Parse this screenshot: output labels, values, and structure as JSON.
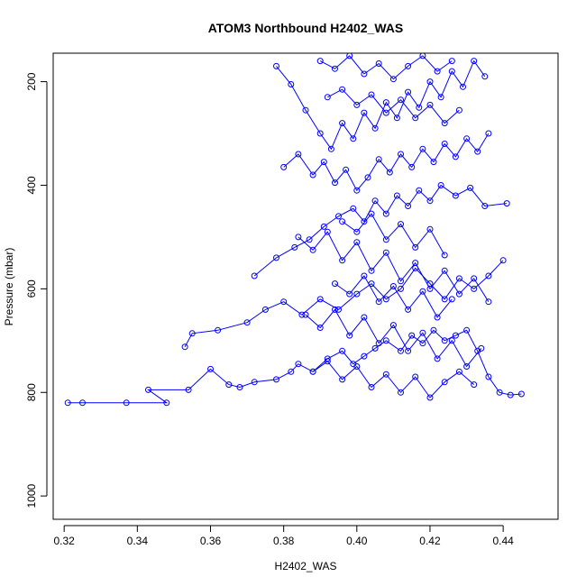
{
  "chart_data": {
    "type": "line",
    "title": "ATOM3 Northbound H2402_WAS",
    "xlabel": "H2402_WAS",
    "ylabel": "Pressure (mbar)",
    "xlim": [
      0.317,
      0.455
    ],
    "ylim": [
      1045,
      145
    ],
    "y_reversed": true,
    "x_ticks": [
      "0.32",
      "0.34",
      "0.36",
      "0.38",
      "0.40",
      "0.42",
      "0.44"
    ],
    "y_ticks": [
      "200",
      "400",
      "600",
      "800",
      "1000"
    ],
    "grid": false,
    "color": "#0000ff",
    "marker": "open-circle",
    "series": [
      {
        "x": [
          0.321,
          0.325,
          0.337,
          0.348,
          0.343,
          0.354,
          0.36,
          0.365,
          0.368,
          0.372,
          0.378,
          0.382,
          0.384,
          0.388,
          0.392,
          0.396,
          0.399,
          0.402,
          0.405,
          0.408,
          0.412,
          0.415,
          0.418,
          0.421,
          0.424,
          0.427,
          0.43,
          0.433,
          0.436,
          0.439,
          0.442,
          0.445
        ],
        "y": [
          820,
          820,
          820,
          820,
          795,
          795,
          755,
          785,
          790,
          780,
          775,
          760,
          745,
          760,
          735,
          720,
          745,
          730,
          715,
          700,
          720,
          690,
          705,
          680,
          700,
          690,
          680,
          720,
          770,
          800,
          805,
          803
        ]
      },
      {
        "x": [
          0.353,
          0.355,
          0.362,
          0.37,
          0.375,
          0.38,
          0.385,
          0.39,
          0.395,
          0.4,
          0.404,
          0.408,
          0.412,
          0.416,
          0.42,
          0.424,
          0.428,
          0.432,
          0.436,
          0.44
        ],
        "y": [
          712,
          686,
          680,
          665,
          640,
          625,
          650,
          620,
          640,
          610,
          590,
          620,
          600,
          560,
          590,
          620,
          580,
          600,
          575,
          545
        ]
      },
      {
        "x": [
          0.372,
          0.378,
          0.383,
          0.387,
          0.391,
          0.395,
          0.399,
          0.402,
          0.405,
          0.408,
          0.411,
          0.414,
          0.417,
          0.42,
          0.423,
          0.427,
          0.431,
          0.435,
          0.441
        ],
        "y": [
          575,
          540,
          520,
          505,
          480,
          460,
          445,
          470,
          430,
          455,
          420,
          440,
          410,
          430,
          400,
          420,
          405,
          440,
          435
        ]
      },
      {
        "x": [
          0.378,
          0.382,
          0.386,
          0.39,
          0.393,
          0.396,
          0.399,
          0.402,
          0.405,
          0.408,
          0.411,
          0.414,
          0.417,
          0.42,
          0.423,
          0.426,
          0.429,
          0.432,
          0.435
        ],
        "y": [
          170,
          205,
          255,
          300,
          330,
          280,
          310,
          260,
          290,
          240,
          270,
          220,
          250,
          200,
          230,
          180,
          210,
          160,
          190
        ]
      },
      {
        "x": [
          0.38,
          0.384,
          0.388,
          0.391,
          0.394,
          0.397,
          0.4,
          0.403,
          0.406,
          0.409,
          0.412,
          0.415,
          0.418,
          0.421,
          0.424,
          0.427,
          0.43,
          0.433,
          0.436
        ],
        "y": [
          365,
          340,
          380,
          355,
          395,
          370,
          410,
          385,
          350,
          375,
          340,
          365,
          330,
          355,
          320,
          345,
          310,
          335,
          300
        ]
      },
      {
        "x": [
          0.384,
          0.388,
          0.392,
          0.396,
          0.4,
          0.404,
          0.408,
          0.412,
          0.416,
          0.42,
          0.424,
          0.428,
          0.432,
          0.436
        ],
        "y": [
          500,
          525,
          490,
          545,
          510,
          565,
          530,
          585,
          550,
          600,
          565,
          610,
          580,
          625
        ]
      },
      {
        "x": [
          0.386,
          0.39,
          0.394,
          0.398,
          0.402,
          0.406,
          0.41,
          0.414,
          0.418,
          0.422,
          0.426,
          0.43,
          0.434
        ],
        "y": [
          650,
          675,
          640,
          690,
          655,
          705,
          670,
          720,
          685,
          735,
          700,
          750,
          715
        ]
      },
      {
        "x": [
          0.388,
          0.392,
          0.396,
          0.4,
          0.404,
          0.408,
          0.412,
          0.416,
          0.42,
          0.424,
          0.428,
          0.432
        ],
        "y": [
          760,
          740,
          775,
          750,
          790,
          765,
          800,
          770,
          810,
          780,
          760,
          785
        ]
      },
      {
        "x": [
          0.39,
          0.394,
          0.398,
          0.402,
          0.406,
          0.41,
          0.414,
          0.418,
          0.422,
          0.426
        ],
        "y": [
          160,
          175,
          150,
          185,
          165,
          195,
          170,
          150,
          180,
          160
        ]
      },
      {
        "x": [
          0.392,
          0.396,
          0.4,
          0.404,
          0.408,
          0.412,
          0.416,
          0.42,
          0.424,
          0.428
        ],
        "y": [
          230,
          215,
          245,
          225,
          260,
          235,
          270,
          245,
          280,
          255
        ]
      },
      {
        "x": [
          0.394,
          0.398,
          0.402,
          0.406,
          0.41,
          0.414,
          0.418,
          0.422,
          0.426
        ],
        "y": [
          590,
          610,
          575,
          625,
          595,
          640,
          605,
          655,
          620
        ]
      },
      {
        "x": [
          0.396,
          0.4,
          0.404,
          0.408,
          0.412,
          0.416,
          0.42,
          0.424
        ],
        "y": [
          470,
          490,
          455,
          505,
          475,
          520,
          485,
          535
        ]
      }
    ]
  }
}
